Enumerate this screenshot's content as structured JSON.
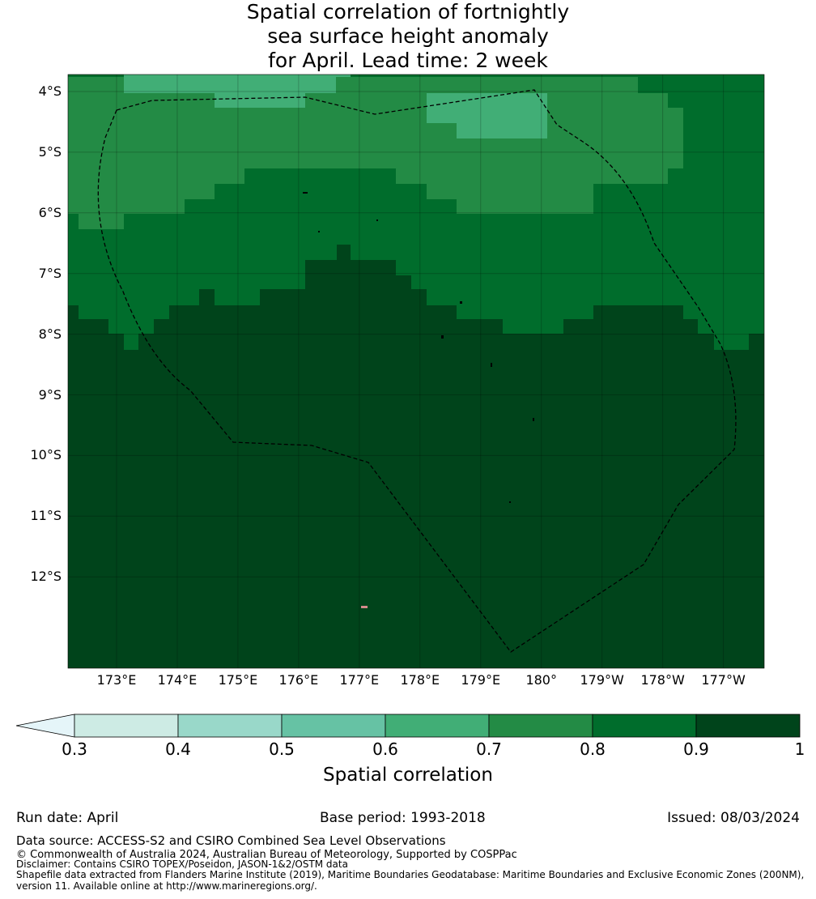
{
  "title": {
    "line1": "Spatial correlation of fortnightly",
    "line2": "sea surface height anomaly",
    "line3": "for April. Lead time: 2 week"
  },
  "map": {
    "lat_labels": [
      "4°S",
      "5°S",
      "6°S",
      "7°S",
      "8°S",
      "9°S",
      "10°S",
      "11°S",
      "12°S"
    ],
    "lon_labels": [
      "173°E",
      "174°E",
      "175°E",
      "176°E",
      "177°E",
      "178°E",
      "179°E",
      "180°",
      "179°W",
      "178°W",
      "177°W"
    ],
    "boundary": "dashed black line (maritime boundary / EEZ)",
    "grid": true
  },
  "colorbar": {
    "label": "Spatial correlation",
    "ticks": [
      "0.3",
      "0.4",
      "0.5",
      "0.6",
      "0.7",
      "0.8",
      "0.9",
      "1"
    ],
    "bins": [
      {
        "range": "<0.3",
        "color": "#e5f5f9"
      },
      {
        "range": "0.3-0.4",
        "color": "#cdebe4"
      },
      {
        "range": "0.4-0.5",
        "color": "#99d8c9"
      },
      {
        "range": "0.5-0.6",
        "color": "#66c2a4"
      },
      {
        "range": "0.6-0.7",
        "color": "#41ae76"
      },
      {
        "range": "0.7-0.8",
        "color": "#238b45"
      },
      {
        "range": "0.8-0.9",
        "color": "#006d2c"
      },
      {
        "range": "0.9-1",
        "color": "#00441b"
      }
    ]
  },
  "footer": {
    "run_date": "Run date: April",
    "base_period": "Base period: 1993-2018",
    "issued": "Issued: 08/03/2024",
    "data_source": "Data source: ACCESS-S2 and CSIRO Combined Sea Level Observations",
    "copyright": "© Commonwealth of Australia 2024, Australian Bureau of Meteorology, Supported by COSPPac",
    "disclaimer": "Disclaimer: Contains CSIRO TOPEX/Poseidon, JASON-1&2/OSTM data",
    "shapefile1": "Shapefile data extracted from Flanders Marine Institute (2019), Maritime Boundaries Geodatabase: Maritime Boundaries and Exclusive Economic Zones (200NM),",
    "shapefile2": "version 11. Available online at http://www.marineregions.org/."
  }
}
